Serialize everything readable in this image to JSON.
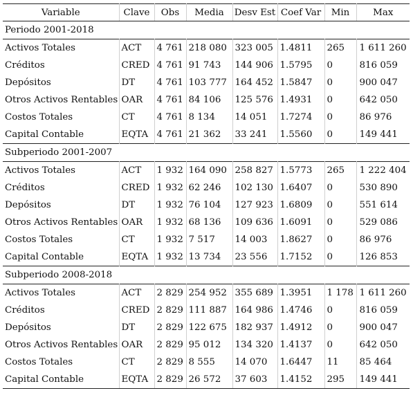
{
  "headers": [
    "Variable",
    "Clave",
    "Obs",
    "Media",
    "Desv Est",
    "Coef Var",
    "Min",
    "Max"
  ],
  "sections": [
    {
      "title": "Periodo 2001-2018",
      "rows": [
        [
          "Activos Totales",
          "ACT",
          "4 761",
          "218 080",
          "323 005",
          "1.4811",
          "265",
          "1 611 260"
        ],
        [
          "Créditos",
          "CRED",
          "4 761",
          "91 743",
          "144 906",
          "1.5795",
          "0",
          "816 059"
        ],
        [
          "Depósitos",
          "DT",
          "4 761",
          "103 777",
          "164 452",
          "1.5847",
          "0",
          "900 047"
        ],
        [
          "Otros Activos Rentables",
          "OAR",
          "4 761",
          "84 106",
          "125 576",
          "1.4931",
          "0",
          "642 050"
        ],
        [
          "Costos Totales",
          "CT",
          "4 761",
          "8 134",
          "14 051",
          "1.7274",
          "0",
          "86 976"
        ],
        [
          "Capital Contable",
          "EQTA",
          "4 761",
          "21 362",
          "33 241",
          "1.5560",
          "0",
          "149 441"
        ]
      ]
    },
    {
      "title": "Subperiodo 2001-2007",
      "rows": [
        [
          "Activos Totales",
          "ACT",
          "1 932",
          "164 090",
          "258 827",
          "1.5773",
          "265",
          "1 222 404"
        ],
        [
          "Créditos",
          "CRED",
          "1 932",
          "62 246",
          "102 130",
          "1.6407",
          "0",
          "530 890"
        ],
        [
          "Depósitos",
          "DT",
          "1 932",
          "76 104",
          "127 923",
          "1.6809",
          "0",
          "551 614"
        ],
        [
          "Otros Activos Rentables",
          "OAR",
          "1 932",
          "68 136",
          "109 636",
          "1.6091",
          "0",
          "529 086"
        ],
        [
          "Costos Totales",
          "CT",
          "1 932",
          "7 517",
          "14 003",
          "1.8627",
          "0",
          "86 976"
        ],
        [
          "Capital Contable",
          "EQTA",
          "1 932",
          "13 734",
          "23 556",
          "1.7152",
          "0",
          "126 853"
        ]
      ]
    },
    {
      "title": "Subperiodo 2008-2018",
      "rows": [
        [
          "Activos Totales",
          "ACT",
          "2 829",
          "254 952",
          "355 689",
          "1.3951",
          "1 178",
          "1 611 260"
        ],
        [
          "Créditos",
          "CRED",
          "2 829",
          "111 887",
          "164 986",
          "1.4746",
          "0",
          "816 059"
        ],
        [
          "Depósitos",
          "DT",
          "2 829",
          "122 675",
          "182 937",
          "1.4912",
          "0",
          "900 047"
        ],
        [
          "Otros Activos Rentables",
          "OAR",
          "2 829",
          "95 012",
          "134 320",
          "1.4137",
          "0",
          "642 050"
        ],
        [
          "Costos Totales",
          "CT",
          "2 829",
          "8 555",
          "14 070",
          "1.6447",
          "11",
          "85 464"
        ],
        [
          "Capital Contable",
          "EQTA",
          "2 829",
          "26 572",
          "37 603",
          "1.4152",
          "295",
          "149 441"
        ]
      ]
    }
  ]
}
